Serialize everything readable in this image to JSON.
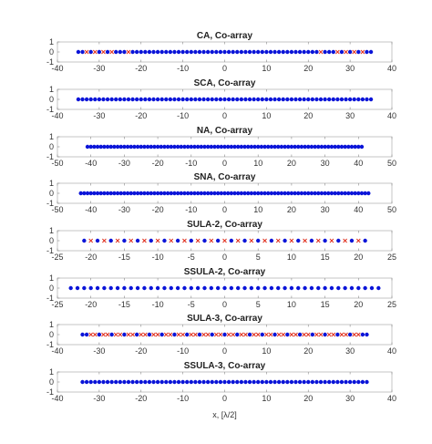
{
  "figure": {
    "xlabel": "x, [λ/2]"
  },
  "colors": {
    "present": "#0a14d8",
    "hole": "#e0301e",
    "axis": "#b8b8b8"
  },
  "chart_data": [
    {
      "type": "scatter",
      "title": "CA, Co-array",
      "xlim": [
        -40,
        40
      ],
      "xticks": [
        -40,
        -30,
        -20,
        -10,
        0,
        10,
        20,
        30,
        40
      ],
      "ylim": [
        -1,
        1
      ],
      "yticks": [
        -1,
        0,
        1
      ],
      "range": [
        -35,
        35
      ],
      "holes": [
        -33,
        -31,
        -29,
        -27,
        -23,
        23,
        27,
        29,
        31,
        33
      ]
    },
    {
      "type": "scatter",
      "title": "SCA, Co-array",
      "xlim": [
        -40,
        40
      ],
      "xticks": [
        -40,
        -30,
        -20,
        -10,
        0,
        10,
        20,
        30,
        40
      ],
      "ylim": [
        -1,
        1
      ],
      "yticks": [
        -1,
        0,
        1
      ],
      "range": [
        -35,
        35
      ],
      "holes": []
    },
    {
      "type": "scatter",
      "title": "NA, Co-array",
      "xlim": [
        -50,
        50
      ],
      "xticks": [
        -50,
        -40,
        -30,
        -20,
        -10,
        0,
        10,
        20,
        30,
        40,
        50
      ],
      "ylim": [
        -1,
        1
      ],
      "yticks": [
        -1,
        0,
        1
      ],
      "range": [
        -41,
        41
      ],
      "holes": []
    },
    {
      "type": "scatter",
      "title": "SNA, Co-array",
      "xlim": [
        -50,
        50
      ],
      "xticks": [
        -50,
        -40,
        -30,
        -20,
        -10,
        0,
        10,
        20,
        30,
        40,
        50
      ],
      "ylim": [
        -1,
        1
      ],
      "yticks": [
        -1,
        0,
        1
      ],
      "range": [
        -43,
        43
      ],
      "holes": []
    },
    {
      "type": "scatter",
      "title": "SULA-2, Co-array",
      "xlim": [
        -25,
        25
      ],
      "xticks": [
        -25,
        -20,
        -15,
        -10,
        -5,
        0,
        5,
        10,
        15,
        20,
        25
      ],
      "ylim": [
        -1,
        1
      ],
      "yticks": [
        -1,
        0,
        1
      ],
      "range": [
        -21,
        21
      ],
      "holes": [
        -20,
        -18,
        -16,
        -14,
        -12,
        -10,
        -8,
        -6,
        -4,
        -2,
        0,
        2,
        4,
        6,
        8,
        10,
        12,
        14,
        16,
        18,
        20
      ]
    },
    {
      "type": "scatter",
      "title": "SSULA-2, Co-array",
      "xlim": [
        -25,
        25
      ],
      "xticks": [
        -25,
        -20,
        -15,
        -10,
        -5,
        0,
        5,
        10,
        15,
        20,
        25
      ],
      "ylim": [
        -1,
        1
      ],
      "yticks": [
        -1,
        0,
        1
      ],
      "range": [
        -23,
        23
      ],
      "holes": []
    },
    {
      "type": "scatter",
      "title": "SULA-3, Co-array",
      "xlim": [
        -40,
        40
      ],
      "xticks": [
        -40,
        -30,
        -20,
        -10,
        0,
        10,
        20,
        30,
        40
      ],
      "ylim": [
        -1,
        1
      ],
      "yticks": [
        -1,
        0,
        1
      ],
      "range": [
        -34,
        34
      ],
      "holes": [
        -32,
        -31,
        -29,
        -28,
        -26,
        -25,
        -23,
        -22,
        -20,
        -19,
        -17,
        -16,
        -14,
        -13,
        -11,
        -10,
        -8,
        -7,
        -5,
        -4,
        -2,
        -1,
        1,
        2,
        4,
        5,
        7,
        8,
        10,
        11,
        13,
        14,
        16,
        17,
        19,
        20,
        22,
        23,
        25,
        26,
        28,
        29,
        31,
        32
      ]
    },
    {
      "type": "scatter",
      "title": "SSULA-3, Co-array",
      "xlim": [
        -40,
        40
      ],
      "xticks": [
        -40,
        -30,
        -20,
        -10,
        0,
        10,
        20,
        30,
        40
      ],
      "ylim": [
        -1,
        1
      ],
      "yticks": [
        -1,
        0,
        1
      ],
      "range": [
        -34,
        34
      ],
      "holes": []
    }
  ]
}
